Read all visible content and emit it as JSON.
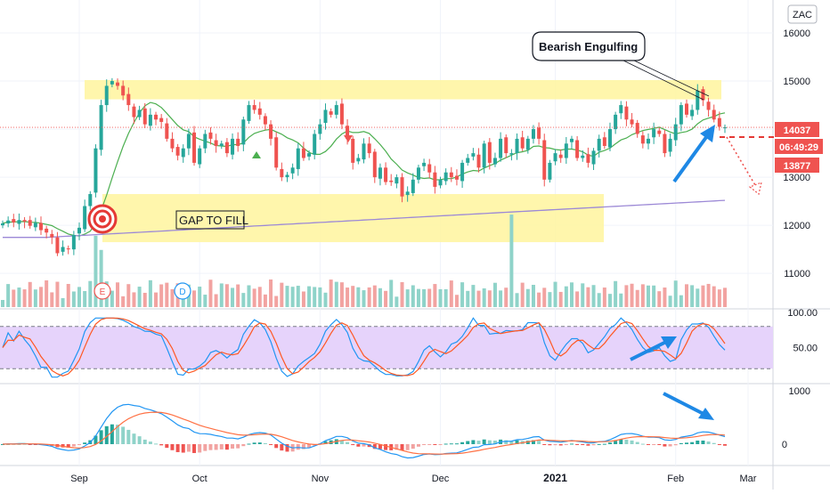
{
  "symbol_badge": "ZAC",
  "colors": {
    "up": "#26a69a",
    "down": "#ef5350",
    "up_vol": "#8fd3c9",
    "down_vol": "#f2a3a1",
    "sma_fast": "#4caf50",
    "sma_slow": "#9c89d6",
    "zone": "#fff59d",
    "price_line": "#ef5350",
    "stoch_k": "#2196f3",
    "stoch_d": "#ff5722",
    "stoch_band": "#e6d3fb",
    "macd": "#2196f3",
    "signal": "#ff7043",
    "annotation_arrow": "#1e88e5",
    "grid": "#f0f3fa",
    "axis_text": "#131722"
  },
  "chart_data": [
    {
      "type": "candlestick",
      "panel": "price",
      "yticks": [
        11000,
        12000,
        13000,
        14000,
        15000,
        16000
      ],
      "ylim": [
        10300,
        16500
      ],
      "x_labels": [
        "Sep",
        "Oct",
        "Nov",
        "Dec",
        "2021",
        "Feb",
        "Mar"
      ],
      "price_labels": {
        "last": "14037",
        "countdown": "06:49:29",
        "level": "13877"
      },
      "annotations": {
        "bearish": "Bearish Engulfing",
        "gap": "GAP TO FILL"
      },
      "event_markers": [
        "E",
        "D"
      ],
      "zones": [
        {
          "label": "resistance",
          "from": 14620,
          "to": 15020
        },
        {
          "label": "gap",
          "from": 11650,
          "to": 12650
        }
      ],
      "series": [
        {
          "name": "close",
          "values": [
            12040,
            12100,
            12060,
            12110,
            12080,
            11990,
            12050,
            11900,
            11850,
            11750,
            11420,
            11550,
            11500,
            11800,
            11950,
            12400,
            12650,
            13600,
            14500,
            14900,
            15000,
            14900,
            14700,
            14500,
            14250,
            14400,
            14100,
            14300,
            14200,
            14150,
            13800,
            13600,
            13450,
            13600,
            13900,
            13300,
            13600,
            13900,
            13800,
            13650,
            13700,
            13500,
            13800,
            13650,
            14200,
            14500,
            14400,
            14300,
            14100,
            13800,
            13200,
            13000,
            13050,
            13200,
            13600,
            13400,
            13500,
            13900,
            14100,
            14400,
            14300,
            14500,
            14100,
            13800,
            13300,
            13400,
            13700,
            13500,
            13000,
            13200,
            12900,
            12900,
            13000,
            12600,
            12700,
            12950,
            13200,
            13300,
            13100,
            12800,
            12950,
            13100,
            13000,
            12950,
            13300,
            13400,
            13500,
            13200,
            13700,
            13300,
            13400,
            13800,
            13500,
            13500,
            13800,
            13600,
            13800,
            14000,
            13800,
            12950,
            13300,
            13500,
            13400,
            13700,
            13800,
            13400,
            13450,
            13300,
            13550,
            13800,
            13650,
            14000,
            14300,
            14500,
            14200,
            14100,
            13900,
            13700,
            13800,
            14000,
            13900,
            13500,
            13800,
            14100,
            14500,
            14300,
            14400,
            14800,
            14600,
            14400,
            14200,
            14050,
            14037
          ]
        }
      ]
    },
    {
      "type": "line",
      "panel": "stochastic",
      "yticks": [
        50,
        100
      ],
      "ytick_labels": [
        "50.00",
        "100.00"
      ],
      "band": [
        20,
        80
      ],
      "ylim": [
        0,
        100
      ]
    },
    {
      "type": "bar",
      "panel": "macd",
      "yticks": [
        0,
        1000
      ],
      "ytick_labels": [
        "0",
        "1000"
      ],
      "ylim": [
        -350,
        1100
      ]
    }
  ]
}
